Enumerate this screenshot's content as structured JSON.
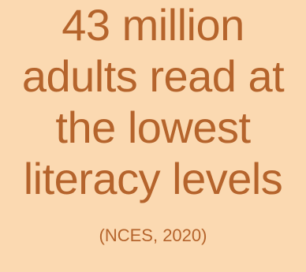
{
  "headline": {
    "lines": [
      "43 million",
      "adults read at",
      "the lowest",
      "literacy levels"
    ]
  },
  "source": "(NCES, 2020)",
  "colors": {
    "background": "#fbd9b1",
    "text": "#b5642c"
  }
}
